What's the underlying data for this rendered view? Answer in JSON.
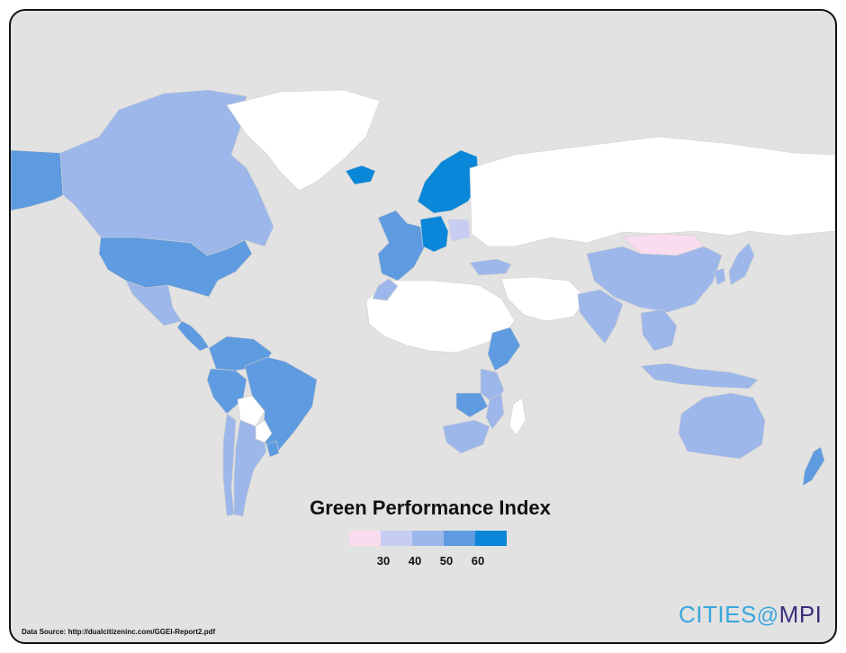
{
  "title": "Green Performance Index",
  "legend": {
    "ticks": [
      "30",
      "40",
      "50",
      "60"
    ],
    "colors": [
      "#f9dcee",
      "#c7ccf2",
      "#9db7ea",
      "#5f9be0",
      "#0a87d9"
    ]
  },
  "source": "Data Source:  http://dualcitizeninc.com/GGEI-Report2.pdf",
  "logo": {
    "part1": "CITIES",
    "at": "@",
    "part2": "MPI",
    "color1": "#3aa7dc",
    "color2": "#3d2e7a"
  },
  "regions": [
    {
      "name": "Alaska",
      "cls": 4
    },
    {
      "name": "Canada",
      "cls": 3
    },
    {
      "name": "Greenland",
      "cls": 0
    },
    {
      "name": "United States",
      "cls": 4
    },
    {
      "name": "Mexico",
      "cls": 3
    },
    {
      "name": "Central America",
      "cls": 4
    },
    {
      "name": "Colombia / Venezuela",
      "cls": 4
    },
    {
      "name": "Brazil",
      "cls": 4
    },
    {
      "name": "Peru",
      "cls": 4
    },
    {
      "name": "Bolivia",
      "cls": 0
    },
    {
      "name": "Paraguay",
      "cls": 0
    },
    {
      "name": "Uruguay",
      "cls": 4
    },
    {
      "name": "Argentina",
      "cls": 3
    },
    {
      "name": "Chile",
      "cls": 3
    },
    {
      "name": "Iceland",
      "cls": 5
    },
    {
      "name": "Nordic countries",
      "cls": 5
    },
    {
      "name": "Western Europe",
      "cls": 4
    },
    {
      "name": "Germany / Switzerland",
      "cls": 5
    },
    {
      "name": "Poland",
      "cls": 2
    },
    {
      "name": "Russia",
      "cls": 0
    },
    {
      "name": "Turkey",
      "cls": 3
    },
    {
      "name": "North Africa",
      "cls": 0
    },
    {
      "name": "Morocco",
      "cls": 3
    },
    {
      "name": "Ethiopia / Kenya",
      "cls": 4
    },
    {
      "name": "Tanzania",
      "cls": 3
    },
    {
      "name": "Zambia",
      "cls": 4
    },
    {
      "name": "Mozambique",
      "cls": 3
    },
    {
      "name": "South Africa",
      "cls": 3
    },
    {
      "name": "Madagascar",
      "cls": 0
    },
    {
      "name": "Middle East",
      "cls": 0
    },
    {
      "name": "Mongolia",
      "cls": 1
    },
    {
      "name": "China",
      "cls": 3
    },
    {
      "name": "India",
      "cls": 3
    },
    {
      "name": "Japan",
      "cls": 3
    },
    {
      "name": "South Korea",
      "cls": 3
    },
    {
      "name": "Southeast Asia",
      "cls": 3
    },
    {
      "name": "Indonesia",
      "cls": 3
    },
    {
      "name": "Australia",
      "cls": 3
    },
    {
      "name": "New Zealand",
      "cls": 4
    }
  ]
}
